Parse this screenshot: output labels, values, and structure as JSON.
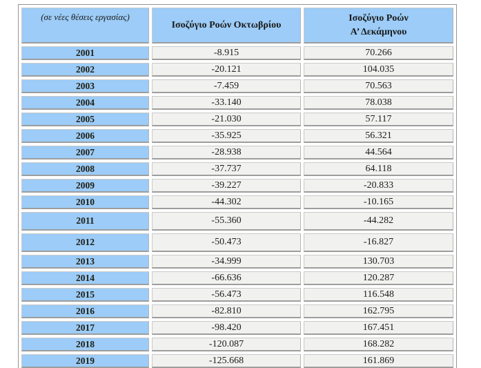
{
  "table": {
    "corner_label": "(σε νέες θέσεις εργασίας)",
    "col_october": "Ισοζύγιο Ροών Οκτωβρίου",
    "col_ten_month_line1": "Ισοζύγιο Ροών",
    "col_ten_month_line2": "Α’ Δεκάμηνου"
  },
  "colors": {
    "header_and_year_blue": "#9cccf7",
    "value_cell_gray": "#f1f1ef",
    "cell_border": "#c9c9c9",
    "cell_bottom_border": "#9d9d9d",
    "outer_border": "#939393",
    "text": "#1c1c1c"
  },
  "chart_data": {
    "type": "table",
    "title": "",
    "unit_note": "(σε νέες θέσεις εργασίας)",
    "columns": [
      "(σε νέες θέσεις εργασίας)",
      "Ισοζύγιο Ροών Οκτωβρίου",
      "Ισοζύγιο Ροών Α’ Δεκάμηνου"
    ],
    "rows": [
      {
        "year": "2001",
        "october": "-8.915",
        "ten_month": "70.266"
      },
      {
        "year": "2002",
        "october": "-20.121",
        "ten_month": "104.035"
      },
      {
        "year": "2003",
        "october": "-7.459",
        "ten_month": "70.563"
      },
      {
        "year": "2004",
        "october": "-33.140",
        "ten_month": "78.038"
      },
      {
        "year": "2005",
        "october": "-21.030",
        "ten_month": "57.117"
      },
      {
        "year": "2006",
        "october": "-35.925",
        "ten_month": "56.321"
      },
      {
        "year": "2007",
        "october": "-28.938",
        "ten_month": "44.564"
      },
      {
        "year": "2008",
        "october": "-37.737",
        "ten_month": "64.118"
      },
      {
        "year": "2009",
        "october": "-39.227",
        "ten_month": "-20.833"
      },
      {
        "year": "2010",
        "october": "-44.302",
        "ten_month": "-10.165"
      },
      {
        "year": "2011",
        "october": "-55.360",
        "ten_month": "-44.282"
      },
      {
        "year": "2012",
        "october": "-50.473",
        "ten_month": "-16.827"
      },
      {
        "year": "2013",
        "october": "-34.999",
        "ten_month": "130.703"
      },
      {
        "year": "2014",
        "october": "-66.636",
        "ten_month": "120.287"
      },
      {
        "year": "2015",
        "october": "-56.473",
        "ten_month": "116.548"
      },
      {
        "year": "2016",
        "october": "-82.810",
        "ten_month": "162.795"
      },
      {
        "year": "2017",
        "october": "-98.420",
        "ten_month": "167.451"
      },
      {
        "year": "2018",
        "october": "-120.087",
        "ten_month": "168.282"
      },
      {
        "year": "2019",
        "october": "-125.668",
        "ten_month": "161.869"
      }
    ]
  }
}
